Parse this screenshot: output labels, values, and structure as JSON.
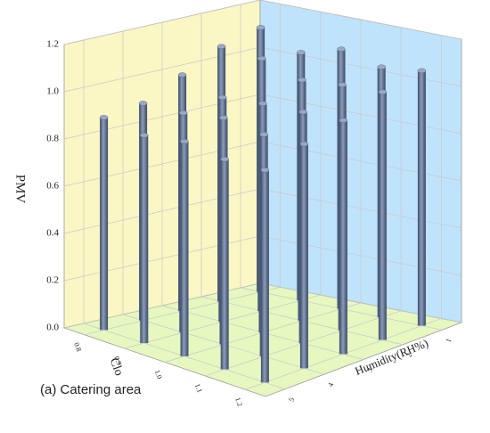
{
  "chart_data": {
    "type": "bar3d",
    "caption": "(a) Catering area",
    "zlabel": "PMV",
    "xlabel": "Clo",
    "ylabel": "Humidity(RH%)",
    "zlim": [
      0,
      1.2
    ],
    "zticks": [
      {
        "value": 0,
        "label": "0.0"
      },
      0.2,
      0.4,
      0.6,
      0.8,
      {
        "value": 1,
        "label": "1.0"
      },
      1.2
    ],
    "xlim": [
      0.75,
      1.25
    ],
    "xticks": [
      0.8,
      0.9,
      {
        "value": 1,
        "label": "1.0"
      },
      1.1,
      1.2
    ],
    "ylim": [
      5.5,
      0.5
    ],
    "yticks": [
      1,
      2,
      3,
      4,
      5
    ],
    "grid": true,
    "color": "#5a6f8f",
    "series": [
      {
        "name": "PMV",
        "clo": [
          0.8,
          0.8,
          0.9,
          0.8,
          0.9,
          1.0,
          0.8,
          0.9,
          1.0,
          1.1,
          0.8,
          0.9,
          1.0,
          1.1,
          1.2,
          0.9,
          1.0,
          1.1,
          1.2,
          1.0,
          1.1,
          1.2,
          1.1,
          1.2,
          1.2
        ],
        "humidity": [
          1,
          2,
          1,
          3,
          2,
          1,
          4,
          3,
          2,
          1,
          5,
          4,
          3,
          2,
          1,
          5,
          4,
          3,
          2,
          5,
          4,
          3,
          5,
          4,
          5
        ],
        "values": [
          1.12,
          1.08,
          1.05,
          1.0,
          1.07,
          1.1,
          0.92,
          0.95,
          1.02,
          1.06,
          0.9,
          0.93,
          0.97,
          1.04,
          1.08,
          0.88,
          0.96,
          0.98,
          1.05,
          0.91,
          0.94,
          0.99,
          0.89,
          0.95,
          0.9
        ]
      }
    ]
  }
}
